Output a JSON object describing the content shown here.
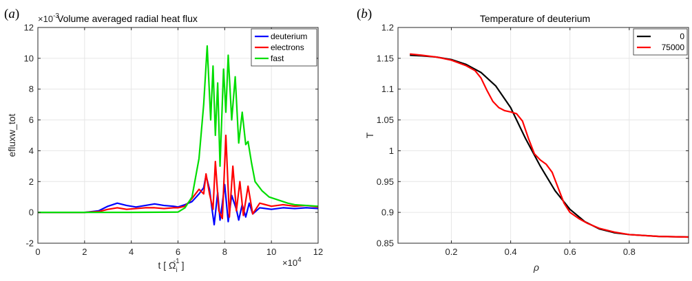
{
  "chart_data": [
    {
      "type": "line",
      "panel_label": "a",
      "title": "Volume averaged radial heat flux",
      "xlabel": "t [ Ω",
      "xlabel_sub": "i",
      "xlabel_sup": "-1",
      "xlabel_close": "]",
      "ylabel": "efluxw_tot",
      "x_exponent_label": "×10",
      "x_exponent": "4",
      "y_exponent_label": "×10",
      "y_exponent": "-3",
      "xlim": [
        0,
        12
      ],
      "ylim": [
        -2,
        12
      ],
      "xticks": [
        0,
        2,
        4,
        6,
        8,
        10,
        12
      ],
      "yticks": [
        -2,
        0,
        2,
        4,
        6,
        8,
        10,
        12
      ],
      "grid": true,
      "legend_position": "top-right",
      "series": [
        {
          "name": "deuterium",
          "color": "#0000ff",
          "points": [
            [
              0,
              0
            ],
            [
              1,
              0
            ],
            [
              2,
              0
            ],
            [
              2.6,
              0.1
            ],
            [
              3.0,
              0.4
            ],
            [
              3.4,
              0.6
            ],
            [
              3.8,
              0.45
            ],
            [
              4.2,
              0.35
            ],
            [
              4.6,
              0.45
            ],
            [
              5.0,
              0.55
            ],
            [
              5.4,
              0.45
            ],
            [
              5.8,
              0.4
            ],
            [
              6.0,
              0.35
            ],
            [
              6.3,
              0.5
            ],
            [
              6.6,
              0.7
            ],
            [
              6.9,
              1.2
            ],
            [
              7.1,
              1.6
            ],
            [
              7.2,
              2.4
            ],
            [
              7.35,
              1.5
            ],
            [
              7.45,
              0.3
            ],
            [
              7.55,
              -0.8
            ],
            [
              7.7,
              1.3
            ],
            [
              7.8,
              -0.5
            ],
            [
              7.9,
              0.6
            ],
            [
              8.0,
              1.8
            ],
            [
              8.15,
              -0.6
            ],
            [
              8.3,
              1.1
            ],
            [
              8.5,
              0.2
            ],
            [
              8.6,
              -0.5
            ],
            [
              8.75,
              0.5
            ],
            [
              8.9,
              -0.3
            ],
            [
              9.05,
              0.6
            ],
            [
              9.2,
              -0.1
            ],
            [
              9.5,
              0.3
            ],
            [
              10.0,
              0.2
            ],
            [
              10.5,
              0.3
            ],
            [
              11.0,
              0.25
            ],
            [
              11.5,
              0.3
            ],
            [
              12,
              0.25
            ]
          ]
        },
        {
          "name": "electrons",
          "color": "#ff0000",
          "points": [
            [
              0,
              0
            ],
            [
              1,
              0
            ],
            [
              2,
              0
            ],
            [
              2.6,
              0.05
            ],
            [
              3.0,
              0.2
            ],
            [
              3.4,
              0.3
            ],
            [
              3.8,
              0.2
            ],
            [
              4.2,
              0.25
            ],
            [
              4.6,
              0.3
            ],
            [
              5.0,
              0.3
            ],
            [
              5.4,
              0.25
            ],
            [
              5.8,
              0.3
            ],
            [
              6.0,
              0.3
            ],
            [
              6.3,
              0.4
            ],
            [
              6.6,
              0.9
            ],
            [
              6.9,
              1.5
            ],
            [
              7.1,
              1.2
            ],
            [
              7.2,
              2.5
            ],
            [
              7.35,
              1.2
            ],
            [
              7.5,
              0.2
            ],
            [
              7.6,
              3.3
            ],
            [
              7.75,
              0.1
            ],
            [
              7.9,
              -0.4
            ],
            [
              8.05,
              5.0
            ],
            [
              8.2,
              -0.3
            ],
            [
              8.35,
              3.0
            ],
            [
              8.5,
              0.1
            ],
            [
              8.65,
              2.0
            ],
            [
              8.8,
              -0.2
            ],
            [
              9.0,
              1.7
            ],
            [
              9.2,
              -0.1
            ],
            [
              9.5,
              0.6
            ],
            [
              10.0,
              0.4
            ],
            [
              10.5,
              0.5
            ],
            [
              11.0,
              0.4
            ],
            [
              11.5,
              0.45
            ],
            [
              12,
              0.35
            ]
          ]
        },
        {
          "name": "fast",
          "color": "#00dd00",
          "points": [
            [
              0,
              0
            ],
            [
              2,
              0
            ],
            [
              4,
              0
            ],
            [
              6,
              0.02
            ],
            [
              6.3,
              0.3
            ],
            [
              6.6,
              1.0
            ],
            [
              6.9,
              3.5
            ],
            [
              7.1,
              7.0
            ],
            [
              7.25,
              10.8
            ],
            [
              7.4,
              6.0
            ],
            [
              7.5,
              9.5
            ],
            [
              7.6,
              5.0
            ],
            [
              7.7,
              8.4
            ],
            [
              7.8,
              3.0
            ],
            [
              7.95,
              9.3
            ],
            [
              8.05,
              6.5
            ],
            [
              8.15,
              10.2
            ],
            [
              8.3,
              6.0
            ],
            [
              8.45,
              8.8
            ],
            [
              8.6,
              4.5
            ],
            [
              8.75,
              6.5
            ],
            [
              8.9,
              4.4
            ],
            [
              9.0,
              4.6
            ],
            [
              9.15,
              3.2
            ],
            [
              9.3,
              2.0
            ],
            [
              9.6,
              1.4
            ],
            [
              9.9,
              1.0
            ],
            [
              10.3,
              0.8
            ],
            [
              10.7,
              0.6
            ],
            [
              11.0,
              0.5
            ],
            [
              11.5,
              0.45
            ],
            [
              12,
              0.4
            ]
          ]
        }
      ]
    },
    {
      "type": "line",
      "panel_label": "b",
      "title": "Temperature of deuterium",
      "xlabel": "ρ",
      "ylabel": "T",
      "xlim": [
        0.02,
        1.0
      ],
      "ylim": [
        0.85,
        1.2
      ],
      "xticks": [
        0.2,
        0.4,
        0.6,
        0.8
      ],
      "yticks": [
        0.85,
        0.9,
        0.95,
        1.0,
        1.05,
        1.1,
        1.15,
        1.2
      ],
      "ytick_labels": [
        "0.85",
        "0.9",
        "0.95",
        "1",
        "1.05",
        "1.1",
        "1.15",
        "1.2"
      ],
      "grid": true,
      "legend_position": "top-right",
      "series": [
        {
          "name": "0",
          "color": "#000000",
          "points": [
            [
              0.06,
              1.155
            ],
            [
              0.1,
              1.154
            ],
            [
              0.15,
              1.152
            ],
            [
              0.2,
              1.148
            ],
            [
              0.25,
              1.14
            ],
            [
              0.3,
              1.127
            ],
            [
              0.35,
              1.105
            ],
            [
              0.4,
              1.07
            ],
            [
              0.45,
              1.02
            ],
            [
              0.5,
              0.975
            ],
            [
              0.55,
              0.935
            ],
            [
              0.6,
              0.905
            ],
            [
              0.65,
              0.885
            ],
            [
              0.7,
              0.873
            ],
            [
              0.75,
              0.867
            ],
            [
              0.8,
              0.864
            ],
            [
              0.9,
              0.861
            ],
            [
              1.0,
              0.86
            ]
          ]
        },
        {
          "name": "75000",
          "color": "#ff0000",
          "points": [
            [
              0.06,
              1.157
            ],
            [
              0.1,
              1.155
            ],
            [
              0.15,
              1.152
            ],
            [
              0.2,
              1.147
            ],
            [
              0.25,
              1.138
            ],
            [
              0.28,
              1.13
            ],
            [
              0.3,
              1.118
            ],
            [
              0.32,
              1.098
            ],
            [
              0.34,
              1.08
            ],
            [
              0.36,
              1.07
            ],
            [
              0.38,
              1.065
            ],
            [
              0.4,
              1.063
            ],
            [
              0.42,
              1.06
            ],
            [
              0.44,
              1.048
            ],
            [
              0.46,
              1.02
            ],
            [
              0.48,
              0.995
            ],
            [
              0.5,
              0.985
            ],
            [
              0.52,
              0.978
            ],
            [
              0.54,
              0.965
            ],
            [
              0.56,
              0.94
            ],
            [
              0.58,
              0.915
            ],
            [
              0.6,
              0.9
            ],
            [
              0.63,
              0.89
            ],
            [
              0.66,
              0.882
            ],
            [
              0.7,
              0.874
            ],
            [
              0.75,
              0.868
            ],
            [
              0.8,
              0.864
            ],
            [
              0.9,
              0.861
            ],
            [
              1.0,
              0.86
            ]
          ]
        }
      ]
    }
  ]
}
